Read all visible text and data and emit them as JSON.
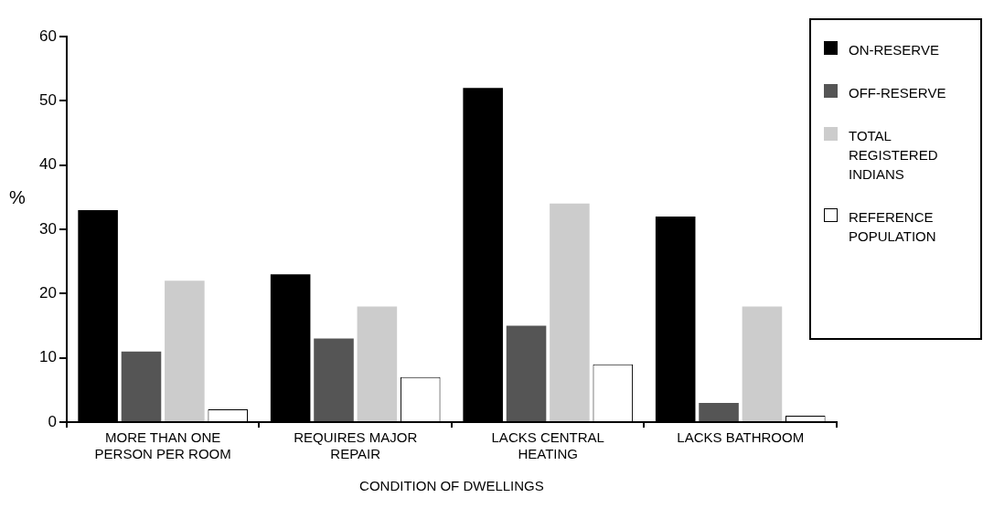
{
  "chart_data": {
    "type": "bar",
    "xlabel": "CONDITION OF DWELLINGS",
    "ylabel": "%",
    "categories": [
      "MORE THAN ONE PERSON PER ROOM",
      "REQUIRES MAJOR REPAIR",
      "LACKS CENTRAL HEATING",
      "LACKS BATHROOM"
    ],
    "series": [
      {
        "name": "ON-RESERVE",
        "color": "#000000",
        "values": [
          33,
          23,
          52,
          32
        ]
      },
      {
        "name": "OFF-RESERVE",
        "color": "#555555",
        "values": [
          11,
          13,
          15,
          3
        ]
      },
      {
        "name": "TOTAL REGISTERED INDIANS",
        "color": "#cccccc",
        "values": [
          22,
          18,
          34,
          18
        ]
      },
      {
        "name": "REFERENCE POPULATION",
        "color": "#ffffff",
        "values": [
          2,
          7,
          9,
          1
        ]
      }
    ],
    "ylim": [
      0,
      60
    ],
    "yticks": [
      0,
      10,
      20,
      30,
      40,
      50,
      60
    ],
    "grid": false,
    "legend": "top right"
  }
}
